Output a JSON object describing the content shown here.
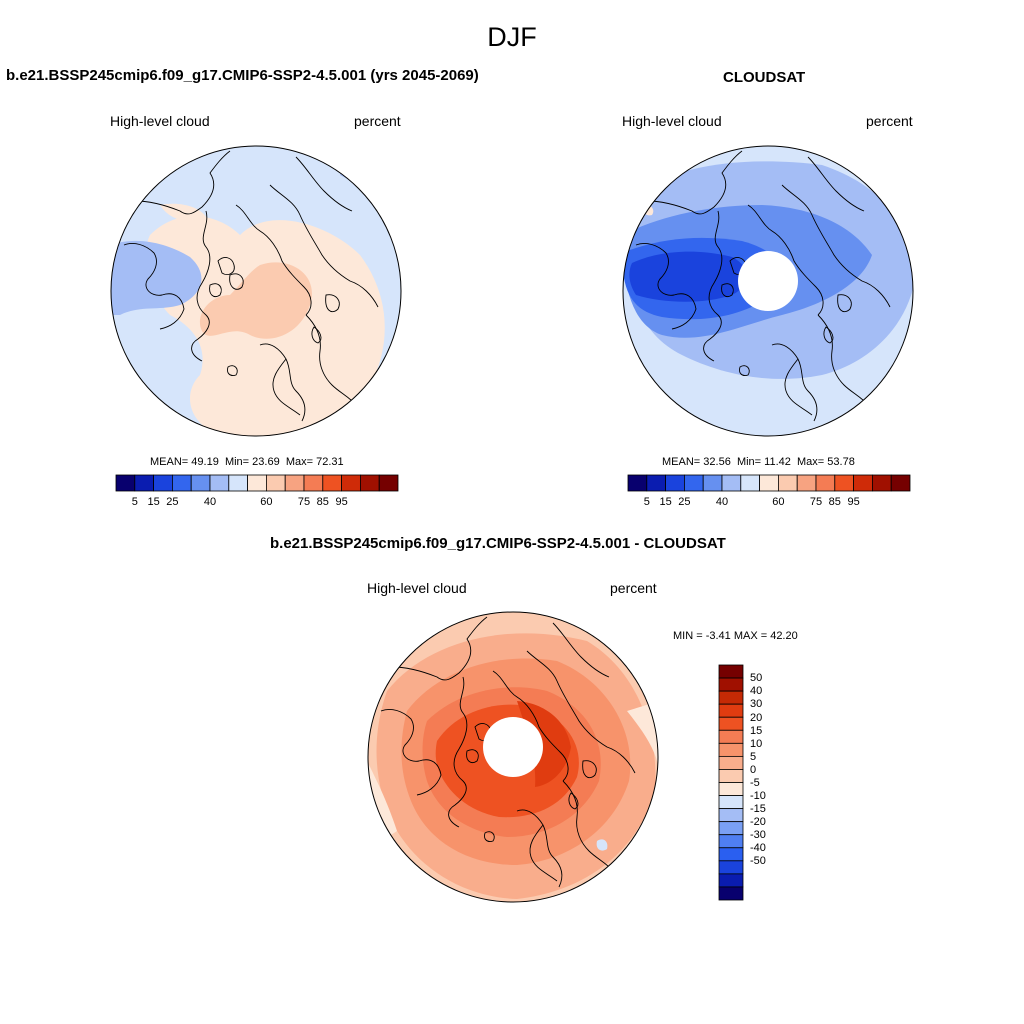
{
  "figure": {
    "title": "DJF"
  },
  "colors": {
    "abs_scale": [
      "#08006e",
      "#0a1cb0",
      "#1a43dd",
      "#3366ee",
      "#6690f0",
      "#a4bdf5",
      "#d6e5fb",
      "#fde8d9",
      "#fbcbb0",
      "#f7a381",
      "#f47c54",
      "#ee5222",
      "#cf2b08",
      "#a01000",
      "#750000"
    ],
    "diff_scale": [
      "#08006e",
      "#0a1cb0",
      "#1a43dd",
      "#2a5ff0",
      "#4f7ff2",
      "#7aa0f4",
      "#a4bdf5",
      "#d6e5fb",
      "#fde8d9",
      "#fbcbb0",
      "#f9ad8c",
      "#f7936b",
      "#f47c54",
      "#ee5222",
      "#e03c10",
      "#c52a05",
      "#a01000",
      "#750000"
    ]
  },
  "panels": [
    {
      "title": "b.e21.BSSP245cmip6.f09_g17.CMIP6-SSP2-4.5.001 (yrs 2045-2069)",
      "left_label": "High-level cloud",
      "right_label": "percent",
      "stats": {
        "mean_label": "MEAN=",
        "mean": "49.19",
        "min_label": "Min=",
        "min": "23.69",
        "max_label": "Max=",
        "max": "72.31"
      },
      "colorbar_ticks": [
        "5",
        "15",
        "25",
        "40",
        "60",
        "75",
        "85",
        "95"
      ]
    },
    {
      "title": "CLOUDSAT",
      "left_label": "High-level cloud",
      "right_label": "percent",
      "stats": {
        "mean_label": "MEAN=",
        "mean": "32.56",
        "min_label": "Min=",
        "min": "11.42",
        "max_label": "Max=",
        "max": "53.78"
      },
      "colorbar_ticks": [
        "5",
        "15",
        "25",
        "40",
        "60",
        "75",
        "85",
        "95"
      ]
    },
    {
      "title": "b.e21.BSSP245cmip6.f09_g17.CMIP6-SSP2-4.5.001 - CLOUDSAT",
      "left_label": "High-level cloud",
      "right_label": "percent",
      "stats_text": "MIN =  -3.41 MAX =  42.20",
      "colorbar_ticks": [
        "50",
        "40",
        "30",
        "20",
        "15",
        "10",
        "5",
        "0",
        "-5",
        "-10",
        "-15",
        "-20",
        "-30",
        "-40",
        "-50"
      ]
    }
  ]
}
